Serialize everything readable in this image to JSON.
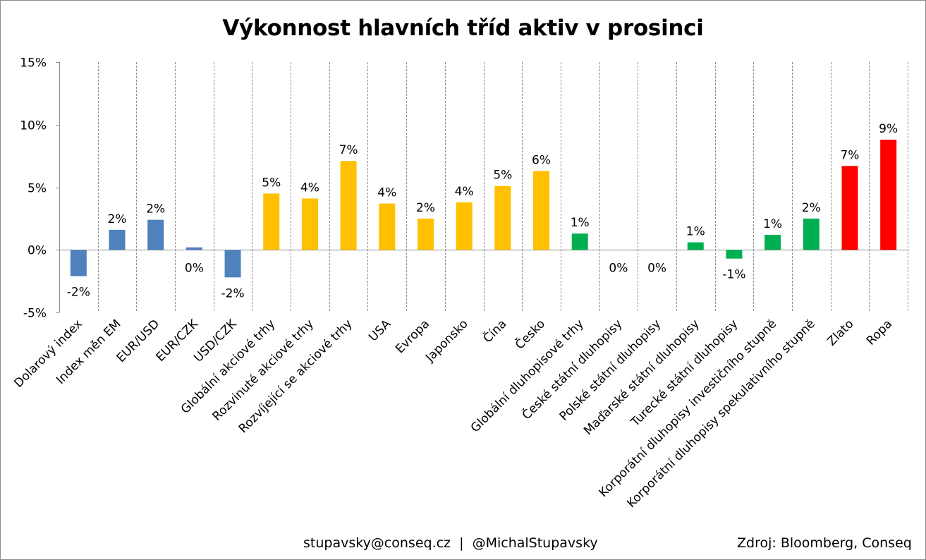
{
  "chart_data": {
    "type": "bar",
    "title": "Výkonnost hlavních tříd aktiv v prosinci",
    "xlabel": "",
    "ylabel": "",
    "ylim": [
      -5,
      15
    ],
    "yticks": [
      "15%",
      "10%",
      "5%",
      "0%",
      "-5%"
    ],
    "ytick_values": [
      15,
      10,
      5,
      0,
      -5
    ],
    "grid": "vertical dashed separators",
    "legend": "none",
    "categories": [
      "Dolarový index",
      "Index měn EM",
      "EUR/USD",
      "EUR/CZK",
      "USD/CZK",
      "Globální akciové trhy",
      "Rozvinuté akciové trhy",
      "Rozvíjející se akciové trhy",
      "USA",
      "Evropa",
      "Japonsko",
      "Čína",
      "Česko",
      "Globální dluhopisové trhy",
      "České státní dluhopisy",
      "Polské státní dluhopisy",
      "Maďarské státní dluhopisy",
      "Turecké státní dluhopisy",
      "Korporátní dluhopisy investičního stupně",
      "Korporátní dluhopisy spekulativního stupně",
      "Zlato",
      "Ropa"
    ],
    "values": [
      -2.1,
      1.6,
      2.4,
      0.2,
      -2.2,
      4.5,
      4.1,
      7.1,
      3.7,
      2.5,
      3.8,
      5.1,
      6.3,
      1.3,
      0.0,
      0.0,
      0.6,
      -0.7,
      1.2,
      2.5,
      6.7,
      8.8
    ],
    "data_labels": [
      "-2%",
      "2%",
      "2%",
      "0%",
      "-2%",
      "5%",
      "4%",
      "7%",
      "4%",
      "2%",
      "4%",
      "5%",
      "6%",
      "1%",
      "0%",
      "0%",
      "1%",
      "-1%",
      "1%",
      "2%",
      "7%",
      "9%"
    ],
    "colors": [
      "#4f81bd",
      "#4f81bd",
      "#4f81bd",
      "#4f81bd",
      "#4f81bd",
      "#ffc000",
      "#ffc000",
      "#ffc000",
      "#ffc000",
      "#ffc000",
      "#ffc000",
      "#ffc000",
      "#ffc000",
      "#00b050",
      "#00b050",
      "#00b050",
      "#00b050",
      "#00b050",
      "#00b050",
      "#00b050",
      "#ff0000",
      "#ff0000"
    ]
  },
  "footer": {
    "contact": "stupavsky@conseq.cz  |  @MichalStupavsky",
    "source": "Zdroj: Bloomberg, Conseq"
  }
}
